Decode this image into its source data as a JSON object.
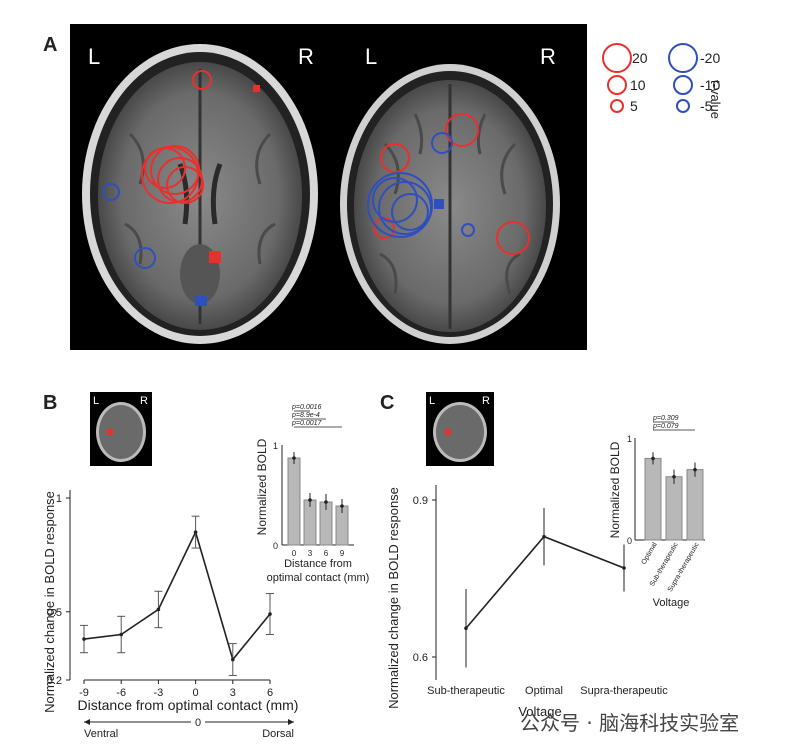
{
  "panelA": {
    "letter": "A",
    "left_brain": {
      "L": "L",
      "R": "R"
    },
    "right_brain": {
      "L": "L",
      "R": "R"
    },
    "legend": {
      "red": [
        "20",
        "10",
        "5"
      ],
      "blue": [
        "-20",
        "-10",
        "-5"
      ],
      "title": "t-value"
    },
    "colors": {
      "positive": "#e8302c",
      "negative": "#2f4fbf"
    }
  },
  "panelB": {
    "letter": "B",
    "thumb": {
      "L": "L",
      "R": "R"
    },
    "ylabel": "Normalized change in BOLD response",
    "xlabel": "Distance from optimal contact (mm)",
    "yticks": [
      "1",
      "0.5",
      "0.2"
    ],
    "xticks": [
      "-9",
      "-6",
      "-3",
      "0",
      "3",
      "6"
    ],
    "axis_note": {
      "left": "Ventral",
      "center": "0",
      "right": "Dorsal"
    },
    "chart_data": {
      "type": "line",
      "x": [
        -9,
        -6,
        -3,
        0,
        3,
        6
      ],
      "y": [
        0.38,
        0.4,
        0.51,
        0.85,
        0.29,
        0.49
      ],
      "err": [
        0.06,
        0.08,
        0.08,
        0.07,
        0.07,
        0.09
      ],
      "ylim": [
        0.2,
        1.0
      ],
      "xlim": [
        -9,
        6
      ]
    },
    "inset": {
      "ylabel": "Normalized BOLD",
      "xlabel": "Distance from\noptimal contact (mm)",
      "ytick_top": "1",
      "ytick_bottom": "0",
      "pvals": [
        "p=0.0016",
        "p=8.9e-4",
        "p=0.0017"
      ],
      "chart_data": {
        "type": "bar",
        "categories": [
          "0",
          "3",
          "6",
          "9"
        ],
        "values": [
          0.87,
          0.45,
          0.43,
          0.39
        ],
        "err": [
          0.06,
          0.07,
          0.08,
          0.07
        ],
        "ylim": [
          0,
          1
        ]
      }
    }
  },
  "panelC": {
    "letter": "C",
    "thumb": {
      "L": "L",
      "R": "R"
    },
    "ylabel": "Normalized change in BOLD response",
    "xlabel": "Voltage",
    "yticks": [
      "0.9",
      "0.6"
    ],
    "xticks": [
      "Sub-therapeutic",
      "Optimal",
      "Supra-therapeutic"
    ],
    "chart_data": {
      "type": "line",
      "categories": [
        "Sub-therapeutic",
        "Optimal",
        "Supra-therapeutic"
      ],
      "values": [
        0.655,
        0.83,
        0.77
      ],
      "err": [
        0.075,
        0.055,
        0.045
      ],
      "ylim": [
        0.6,
        0.9
      ]
    },
    "inset": {
      "ylabel": "Normalized BOLD",
      "xlabel": "Voltage",
      "ytick_top": "1",
      "ytick_bottom": "0",
      "pvals": [
        "p=0.309",
        "p=0.079"
      ],
      "chart_data": {
        "type": "bar",
        "categories": [
          "Optimal",
          "Sub-therapeutic",
          "Supra-therapeutic"
        ],
        "values": [
          0.8,
          0.62,
          0.69
        ],
        "err": [
          0.06,
          0.07,
          0.07
        ],
        "ylim": [
          0,
          1
        ]
      }
    }
  },
  "watermark": "公众号 · 脑海科技实验室"
}
